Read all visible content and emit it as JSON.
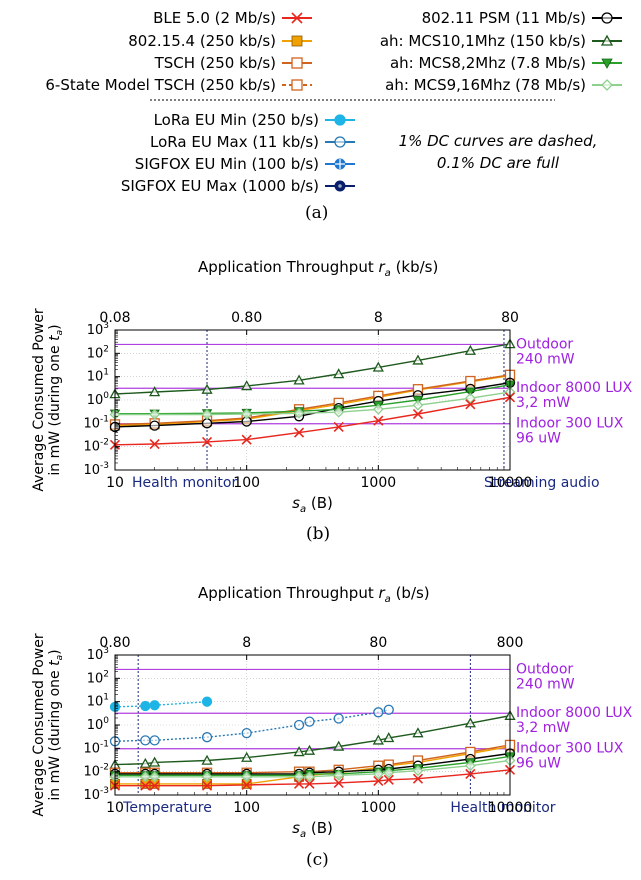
{
  "legend": {
    "left": [
      {
        "label": "BLE 5.0 (2 Mb/s)",
        "color": "#e8281e",
        "marker": "x",
        "dash": false
      },
      {
        "label": "802.15.4 (250 kb/s)",
        "color": "#f0a000",
        "marker": "filled-square",
        "dash": false
      },
      {
        "label": "TSCH (250 kb/s)",
        "color": "#d0641e",
        "marker": "open-square",
        "dash": false
      },
      {
        "label": "6-State Model TSCH (250 kb/s)",
        "color": "#d0641e",
        "marker": "open-square",
        "dash": true
      }
    ],
    "right": [
      {
        "label": "802.11 PSM (11 Mb/s)",
        "color": "#000000",
        "marker": "open-circle",
        "dash": false
      },
      {
        "label": "ah: MCS10,1Mhz (150 kb/s)",
        "color": "#1e5a1e",
        "marker": "triangle",
        "dash": false
      },
      {
        "label": "ah: MCS8,2Mhz (7.8 Mb/s)",
        "color": "#2aa02a",
        "marker": "triangle-down",
        "dash": false
      },
      {
        "label": "ah: MCS9,16Mhz (78 Mb/s)",
        "color": "#8ed08e",
        "marker": "diamond",
        "dash": false
      }
    ],
    "lpwan": [
      {
        "label": "LoRa EU Min (250 b/s)",
        "color": "#1eb4e6",
        "marker": "filled-circle",
        "dash": false
      },
      {
        "label": "LoRa EU Max (11 kb/s)",
        "color": "#2878b4",
        "marker": "open-circle",
        "dash": false
      },
      {
        "label": "SIGFOX EU Min (100 b/s)",
        "color": "#1e78d2",
        "marker": "crosshair-circle",
        "dash": false
      },
      {
        "label": "SIGFOX EU Max (1000 b/s)",
        "color": "#0a1e6e",
        "marker": "dot-circle",
        "dash": false
      }
    ],
    "note_line1": "1% DC curves are dashed,",
    "note_line2": "0.1% DC are full"
  },
  "captions": {
    "a": "(a)",
    "b": "(b)",
    "c": "(c)"
  },
  "chart_data": [
    {
      "type": "line",
      "top_title": "Application Throughput r_a (kb/s)",
      "top_ticks": [
        "0.08",
        "0.80",
        "8",
        "80"
      ],
      "xlabel": "s_a (B)",
      "ylabel_line1": "Average Consumed Power",
      "ylabel_line2": "in mW (during one t_a)",
      "x_log": true,
      "y_log": true,
      "xlim": [
        10,
        10000
      ],
      "ylim": [
        0.001,
        1000
      ],
      "x_ticks": [
        "10",
        "100",
        "1000",
        "10000"
      ],
      "y_ticks": [
        "10^-3",
        "10^-2",
        "10^-1",
        "10^0",
        "10^1",
        "10^2",
        "10^3"
      ],
      "hlines": [
        {
          "y": 240,
          "label1": "Outdoor",
          "label2": "240 mW"
        },
        {
          "y": 3.2,
          "label1": "Indoor 8000 LUX",
          "label2": "3,2 mW"
        },
        {
          "y": 0.096,
          "label1": "Indoor 300 LUX",
          "label2": "96 uW"
        }
      ],
      "vlines": [
        {
          "x": 50,
          "label": "Health monitor"
        },
        {
          "x": 9000,
          "label": "Streaming audio"
        }
      ],
      "series": [
        {
          "name": "ah: MCS10,1Mhz (150 kb/s)",
          "color": "#1e5a1e",
          "marker": "triangle",
          "dash": false,
          "x": [
            10,
            20,
            50,
            100,
            250,
            500,
            1000,
            2000,
            5000,
            10000
          ],
          "y": [
            1.8,
            2.2,
            2.8,
            4,
            7,
            13,
            25,
            50,
            130,
            250
          ]
        },
        {
          "name": "802.15.4 (250 kb/s)",
          "color": "#f0a000",
          "marker": "filled-square",
          "dash": false,
          "x": [
            10,
            20,
            50,
            100,
            250,
            500,
            1000,
            2000,
            5000,
            10000
          ],
          "y": [
            0.08,
            0.09,
            0.12,
            0.15,
            0.35,
            0.65,
            1.3,
            2.7,
            6,
            11
          ]
        },
        {
          "name": "TSCH (250 kb/s)",
          "color": "#d0641e",
          "marker": "open-square",
          "dash": false,
          "x": [
            10,
            20,
            50,
            100,
            250,
            500,
            1000,
            2000,
            5000,
            10000
          ],
          "y": [
            0.09,
            0.1,
            0.13,
            0.17,
            0.4,
            0.75,
            1.5,
            2.9,
            6.5,
            12
          ]
        },
        {
          "name": "802.11 PSM (11 Mb/s)",
          "color": "#000000",
          "marker": "open-circle",
          "dash": false,
          "x": [
            10,
            20,
            50,
            100,
            250,
            500,
            1000,
            2000,
            5000,
            10000
          ],
          "y": [
            0.07,
            0.08,
            0.1,
            0.12,
            0.2,
            0.45,
            0.9,
            1.6,
            3,
            5.5
          ]
        },
        {
          "name": "ah: MCS8,2Mhz (7.8 Mb/s)",
          "color": "#2aa02a",
          "marker": "triangle-down",
          "dash": false,
          "x": [
            10,
            20,
            50,
            100,
            250,
            500,
            1000,
            2000,
            5000,
            10000
          ],
          "y": [
            0.26,
            0.26,
            0.27,
            0.28,
            0.33,
            0.4,
            0.6,
            1.0,
            2.3,
            4.5
          ]
        },
        {
          "name": "ah: MCS9,16Mhz (78 Mb/s)",
          "color": "#8ed08e",
          "marker": "diamond",
          "dash": false,
          "x": [
            10,
            20,
            50,
            100,
            250,
            500,
            1000,
            2000,
            5000,
            10000
          ],
          "y": [
            0.24,
            0.24,
            0.24,
            0.25,
            0.27,
            0.3,
            0.4,
            0.6,
            1.2,
            2.2
          ]
        },
        {
          "name": "BLE 5.0 (2 Mb/s)",
          "color": "#e8281e",
          "marker": "x",
          "dash": false,
          "x": [
            10,
            20,
            50,
            100,
            250,
            500,
            1000,
            2000,
            5000,
            10000
          ],
          "y": [
            0.012,
            0.013,
            0.016,
            0.02,
            0.04,
            0.07,
            0.13,
            0.25,
            0.65,
            1.3
          ]
        }
      ]
    },
    {
      "type": "line",
      "top_title": "Application Throughput r_a (b/s)",
      "top_ticks": [
        "0.80",
        "8",
        "80",
        "800"
      ],
      "xlabel": "s_a (B)",
      "ylabel_line1": "Average Consumed Power",
      "ylabel_line2": "in mW (during one t_a)",
      "x_log": true,
      "y_log": true,
      "xlim": [
        10,
        10000
      ],
      "ylim": [
        0.001,
        1000
      ],
      "x_ticks": [
        "10",
        "100",
        "1000",
        "10000"
      ],
      "y_ticks": [
        "10^-3",
        "10^-2",
        "10^-1",
        "10^0",
        "10^1",
        "10^2",
        "10^3"
      ],
      "hlines": [
        {
          "y": 240,
          "label1": "Outdoor",
          "label2": "240 mW"
        },
        {
          "y": 3.2,
          "label1": "Indoor 8000 LUX",
          "label2": "3,2 mW"
        },
        {
          "y": 0.096,
          "label1": "Indoor 300 LUX",
          "label2": "96 uW"
        }
      ],
      "vlines": [
        {
          "x": 15,
          "label": "Temperature"
        },
        {
          "x": 5000,
          "label": "Health monitor"
        }
      ],
      "series": [
        {
          "name": "LoRa EU Min (250 b/s)",
          "color": "#1eb4e6",
          "marker": "filled-circle",
          "dash": true,
          "x": [
            10,
            17,
            20,
            50
          ],
          "y": [
            6,
            6.5,
            7,
            10
          ]
        },
        {
          "name": "LoRa EU Max (11 kb/s)",
          "color": "#2878b4",
          "marker": "open-circle",
          "dash": true,
          "x": [
            10,
            17,
            20,
            50,
            100,
            250,
            300,
            500,
            1000,
            1200
          ],
          "y": [
            0.2,
            0.22,
            0.22,
            0.3,
            0.45,
            1.0,
            1.4,
            1.9,
            3.5,
            4.5
          ]
        },
        {
          "name": "ah: MCS10,1Mhz (150 kb/s)",
          "color": "#1e5a1e",
          "marker": "triangle",
          "dash": false,
          "x": [
            10,
            17,
            20,
            50,
            100,
            250,
            300,
            500,
            1000,
            1200,
            2000,
            5000,
            10000
          ],
          "y": [
            0.02,
            0.022,
            0.025,
            0.03,
            0.04,
            0.07,
            0.08,
            0.12,
            0.22,
            0.28,
            0.45,
            1.2,
            2.5
          ]
        },
        {
          "name": "802.15.4 (250 kb/s)",
          "color": "#f0a000",
          "marker": "filled-square",
          "dash": false,
          "x": [
            10,
            17,
            20,
            50,
            100,
            250,
            300,
            500,
            1000,
            1200,
            2000,
            5000,
            10000
          ],
          "y": [
            0.003,
            0.003,
            0.003,
            0.003,
            0.003,
            0.006,
            0.007,
            0.009,
            0.015,
            0.018,
            0.025,
            0.06,
            0.12
          ]
        },
        {
          "name": "TSCH (250 kb/s)",
          "color": "#d0641e",
          "marker": "open-square",
          "dash": false,
          "x": [
            10,
            17,
            20,
            50,
            100,
            250,
            300,
            500,
            1000,
            1200,
            2000,
            5000,
            10000
          ],
          "y": [
            0.009,
            0.009,
            0.009,
            0.009,
            0.009,
            0.01,
            0.01,
            0.012,
            0.018,
            0.02,
            0.03,
            0.07,
            0.14
          ]
        },
        {
          "name": "802.11 PSM (11 Mb/s)",
          "color": "#000000",
          "marker": "open-circle",
          "dash": false,
          "x": [
            10,
            17,
            20,
            50,
            100,
            250,
            300,
            500,
            1000,
            1200,
            2000,
            5000,
            10000
          ],
          "y": [
            0.008,
            0.008,
            0.008,
            0.008,
            0.008,
            0.008,
            0.009,
            0.01,
            0.012,
            0.013,
            0.018,
            0.035,
            0.06
          ]
        },
        {
          "name": "ah: MCS8,2Mhz (7.8 Mb/s)",
          "color": "#2aa02a",
          "marker": "triangle-down",
          "dash": false,
          "x": [
            10,
            17,
            20,
            50,
            100,
            250,
            300,
            500,
            1000,
            1200,
            2000,
            5000,
            10000
          ],
          "y": [
            0.007,
            0.007,
            0.007,
            0.007,
            0.007,
            0.007,
            0.008,
            0.008,
            0.01,
            0.011,
            0.014,
            0.025,
            0.045
          ]
        },
        {
          "name": "ah: MCS9,16Mhz (78 Mb/s)",
          "color": "#8ed08e",
          "marker": "diamond",
          "dash": false,
          "x": [
            10,
            17,
            20,
            50,
            100,
            250,
            300,
            500,
            1000,
            1200,
            2000,
            5000,
            10000
          ],
          "y": [
            0.006,
            0.006,
            0.006,
            0.006,
            0.006,
            0.006,
            0.006,
            0.007,
            0.008,
            0.009,
            0.011,
            0.018,
            0.03
          ]
        },
        {
          "name": "BLE 5.0 (2 Mb/s)",
          "color": "#e8281e",
          "marker": "x",
          "dash": false,
          "x": [
            10,
            17,
            20,
            50,
            100,
            250,
            300,
            500,
            1000,
            1200,
            2000,
            5000,
            10000
          ],
          "y": [
            0.0025,
            0.0025,
            0.0025,
            0.0025,
            0.0027,
            0.003,
            0.003,
            0.0033,
            0.004,
            0.0045,
            0.005,
            0.008,
            0.012
          ]
        }
      ]
    }
  ]
}
